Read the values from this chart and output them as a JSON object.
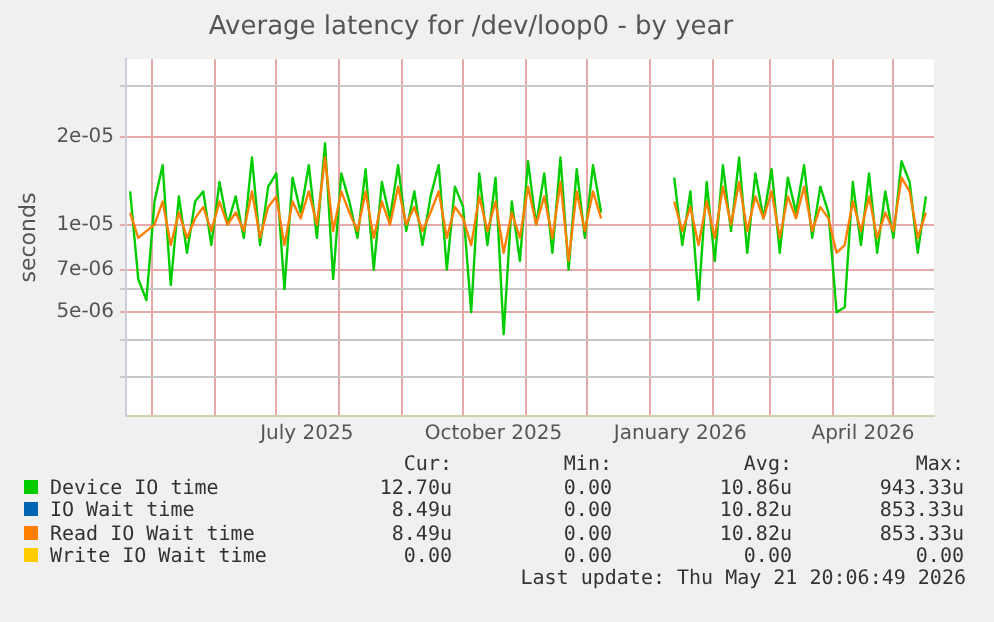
{
  "chart_data": {
    "type": "line",
    "title": "Average latency for /dev/loop0 - by year",
    "ylabel": "seconds",
    "log": "y",
    "grid": true,
    "legend": "bottom",
    "marker": "none",
    "line_style": "solid",
    "x": [
      "2025-04-20",
      "2025-04-24",
      "2025-04-28",
      "2025-05-02",
      "2025-05-06",
      "2025-05-10",
      "2025-05-14",
      "2025-05-18",
      "2025-05-22",
      "2025-05-26",
      "2025-05-30",
      "2025-06-03",
      "2025-06-07",
      "2025-06-11",
      "2025-06-15",
      "2025-06-19",
      "2025-06-23",
      "2025-06-27",
      "2025-07-01",
      "2025-07-05",
      "2025-07-09",
      "2025-07-13",
      "2025-07-17",
      "2025-07-21",
      "2025-07-25",
      "2025-07-29",
      "2025-08-02",
      "2025-08-06",
      "2025-08-10",
      "2025-08-14",
      "2025-08-18",
      "2025-08-22",
      "2025-08-26",
      "2025-08-30",
      "2025-09-03",
      "2025-09-07",
      "2025-09-11",
      "2025-09-15",
      "2025-09-19",
      "2025-09-23",
      "2025-09-27",
      "2025-10-01",
      "2025-10-05",
      "2025-10-09",
      "2025-10-13",
      "2025-10-17",
      "2025-10-21",
      "2025-10-25",
      "2025-10-29",
      "2025-11-02",
      "2025-11-06",
      "2025-11-10",
      "2025-11-14",
      "2025-11-18",
      "2025-11-22",
      "2025-11-26",
      "2025-11-30",
      "2025-12-04",
      "2025-12-08",
      "2025-12-12",
      "2025-12-16",
      "2025-12-20",
      "2025-12-24",
      "2025-12-28",
      "2026-01-01",
      "2026-01-05",
      "2026-01-09",
      "2026-01-13",
      "2026-01-17",
      "2026-01-21",
      "2026-01-25",
      "2026-01-29",
      "2026-02-02",
      "2026-02-06",
      "2026-02-10",
      "2026-02-14",
      "2026-02-18",
      "2026-02-22",
      "2026-02-26",
      "2026-03-02",
      "2026-03-06",
      "2026-03-10",
      "2026-03-14",
      "2026-03-18",
      "2026-03-22",
      "2026-03-26",
      "2026-03-30",
      "2026-04-03",
      "2026-04-07",
      "2026-04-11",
      "2026-04-15",
      "2026-04-19",
      "2026-04-23",
      "2026-04-27",
      "2026-05-01",
      "2026-05-05",
      "2026-05-09",
      "2026-05-13",
      "2026-05-17"
    ],
    "series": [
      {
        "name": "Device IO time",
        "color": "#00cc00",
        "values": [
          1.3e-05,
          6.5e-06,
          5.5e-06,
          1.2e-05,
          1.6e-05,
          6.2e-06,
          1.25e-05,
          8e-06,
          1.2e-05,
          1.3e-05,
          8.5e-06,
          1.4e-05,
          1e-05,
          1.25e-05,
          9e-06,
          1.7e-05,
          8.5e-06,
          1.35e-05,
          1.5e-05,
          6e-06,
          1.45e-05,
          1.1e-05,
          1.6e-05,
          9e-06,
          1.9e-05,
          6.5e-06,
          1.5e-05,
          1.2e-05,
          9e-06,
          1.55e-05,
          7e-06,
          1.4e-05,
          1.05e-05,
          1.6e-05,
          9.5e-06,
          1.3e-05,
          8.5e-06,
          1.25e-05,
          1.6e-05,
          7e-06,
          1.35e-05,
          1.15e-05,
          5e-06,
          1.5e-05,
          8.5e-06,
          1.45e-05,
          4.2e-06,
          1.2e-05,
          7.5e-06,
          1.65e-05,
          1e-05,
          1.5e-05,
          8e-06,
          1.7e-05,
          7e-06,
          1.55e-05,
          9e-06,
          1.6e-05,
          1.1e-05,
          null,
          null,
          null,
          null,
          null,
          null,
          null,
          null,
          1.45e-05,
          8.5e-06,
          1.3e-05,
          5.5e-06,
          1.4e-05,
          7.5e-06,
          1.6e-05,
          9.5e-06,
          1.7e-05,
          8e-06,
          1.5e-05,
          1.05e-05,
          1.55e-05,
          8e-06,
          1.45e-05,
          1.1e-05,
          1.6e-05,
          9e-06,
          1.35e-05,
          1.1e-05,
          5e-06,
          5.2e-06,
          1.4e-05,
          8.5e-06,
          1.5e-05,
          8e-06,
          1.3e-05,
          9e-06,
          1.65e-05,
          1.4e-05,
          8e-06,
          1.25e-05
        ]
      },
      {
        "name": "IO Wait time",
        "color": "#0066b3",
        "values": [
          null,
          null,
          null,
          null,
          null,
          null,
          null,
          null,
          null,
          null,
          null,
          null,
          null,
          null,
          null,
          null,
          null,
          null,
          null,
          null,
          null,
          null,
          null,
          null,
          null,
          null,
          null,
          null,
          null,
          null,
          null,
          null,
          null,
          null,
          null,
          null,
          null,
          null,
          null,
          null,
          null,
          null,
          null,
          null,
          null,
          null,
          null,
          null,
          null,
          null,
          null,
          null,
          null,
          null,
          null,
          null,
          null,
          null,
          null,
          null,
          null,
          null,
          null,
          null,
          null,
          null,
          null,
          null,
          null,
          null,
          null,
          null,
          null,
          null,
          null,
          null,
          null,
          null,
          null,
          null,
          null,
          null,
          null,
          null,
          null,
          null,
          null,
          null,
          null,
          null,
          null,
          null,
          null,
          null,
          null,
          null,
          null,
          null,
          null
        ]
      },
      {
        "name": "Read IO Wait time",
        "color": "#ff8000",
        "values": [
          1.1e-05,
          9e-06,
          9.5e-06,
          1e-05,
          1.2e-05,
          8.5e-06,
          1.1e-05,
          9e-06,
          1.05e-05,
          1.15e-05,
          9.5e-06,
          1.2e-05,
          1e-05,
          1.1e-05,
          9.5e-06,
          1.3e-05,
          9e-06,
          1.15e-05,
          1.25e-05,
          8.5e-06,
          1.2e-05,
          1.05e-05,
          1.3e-05,
          1e-05,
          1.7e-05,
          9.5e-06,
          1.3e-05,
          1.1e-05,
          9.5e-06,
          1.3e-05,
          9e-06,
          1.2e-05,
          1e-05,
          1.35e-05,
          1e-05,
          1.15e-05,
          9.5e-06,
          1.1e-05,
          1.3e-05,
          9e-06,
          1.15e-05,
          1.05e-05,
          8.5e-06,
          1.25e-05,
          9.5e-06,
          1.2e-05,
          8e-06,
          1.1e-05,
          9e-06,
          1.35e-05,
          1e-05,
          1.25e-05,
          9e-06,
          1.4e-05,
          7.5e-06,
          1.3e-05,
          9.5e-06,
          1.3e-05,
          1.05e-05,
          null,
          null,
          null,
          null,
          null,
          null,
          null,
          null,
          1.2e-05,
          9.5e-06,
          1.15e-05,
          8.5e-06,
          1.2e-05,
          9e-06,
          1.35e-05,
          1e-05,
          1.4e-05,
          9.5e-06,
          1.25e-05,
          1.05e-05,
          1.3e-05,
          9e-06,
          1.25e-05,
          1.05e-05,
          1.35e-05,
          9.5e-06,
          1.15e-05,
          1.05e-05,
          8e-06,
          8.5e-06,
          1.2e-05,
          9.5e-06,
          1.25e-05,
          9e-06,
          1.1e-05,
          9.5e-06,
          1.45e-05,
          1.3e-05,
          9e-06,
          1.1e-05
        ]
      },
      {
        "name": "Write IO Wait time",
        "color": "#ffcc00",
        "values": [
          null,
          null,
          null,
          null,
          null,
          null,
          null,
          null,
          null,
          null,
          null,
          null,
          null,
          null,
          null,
          null,
          null,
          null,
          null,
          null,
          null,
          null,
          null,
          null,
          null,
          null,
          null,
          null,
          null,
          null,
          null,
          null,
          null,
          null,
          null,
          null,
          null,
          null,
          null,
          null,
          null,
          null,
          null,
          null,
          null,
          null,
          null,
          null,
          null,
          null,
          null,
          null,
          null,
          null,
          null,
          null,
          null,
          null,
          null,
          null,
          null,
          null,
          null,
          null,
          null,
          null,
          null,
          null,
          null,
          null,
          null,
          null,
          null,
          null,
          null,
          null,
          null,
          null,
          null,
          null,
          null,
          null,
          null,
          null,
          null,
          null,
          null,
          null,
          null,
          null,
          null,
          null,
          null,
          null,
          null,
          null,
          null,
          null,
          null
        ]
      }
    ],
    "xlim": [
      "2025-04-18",
      "2026-05-21"
    ],
    "xticks": [
      {
        "value": "2025-05-01",
        "label": null
      },
      {
        "value": "2025-06-01",
        "label": null
      },
      {
        "value": "2025-07-01",
        "label": null
      },
      {
        "value": "2025-07-16",
        "label": "July 2025"
      },
      {
        "value": "2025-08-01",
        "label": null
      },
      {
        "value": "2025-09-01",
        "label": null
      },
      {
        "value": "2025-10-01",
        "label": null
      },
      {
        "value": "2025-10-16",
        "label": "October 2025"
      },
      {
        "value": "2025-11-01",
        "label": null
      },
      {
        "value": "2025-12-01",
        "label": null
      },
      {
        "value": "2026-01-01",
        "label": null
      },
      {
        "value": "2026-01-16",
        "label": "January 2026"
      },
      {
        "value": "2026-02-01",
        "label": null
      },
      {
        "value": "2026-03-01",
        "label": null
      },
      {
        "value": "2026-04-01",
        "label": null
      },
      {
        "value": "2026-04-16",
        "label": "April 2026"
      },
      {
        "value": "2026-05-01",
        "label": null
      }
    ],
    "ylim": [
      2.2e-06,
      3.7e-05
    ],
    "yticks": [
      {
        "value": 3e-06,
        "label": null
      },
      {
        "value": 4e-06,
        "label": null
      },
      {
        "value": 5e-06,
        "label": "5e-06"
      },
      {
        "value": 6e-06,
        "label": null
      },
      {
        "value": 7e-06,
        "label": "7e-06"
      },
      {
        "value": 1e-05,
        "label": "1e-05"
      },
      {
        "value": 2e-05,
        "label": "2e-05"
      },
      {
        "value": 3e-05,
        "label": null
      }
    ],
    "annotations": [
      "Cur:",
      "Min:",
      "Avg:",
      "Max:",
      "12.70u",
      "0.00",
      "10.86u",
      "943.33u",
      "8.49u",
      "0.00",
      "10.82u",
      "853.33u",
      "8.49u",
      "0.00",
      "10.82u",
      "853.33u",
      "0.00",
      "0.00",
      "0.00",
      "0.00",
      "Last update: Thu May 21 20:06:49 2026"
    ]
  }
}
